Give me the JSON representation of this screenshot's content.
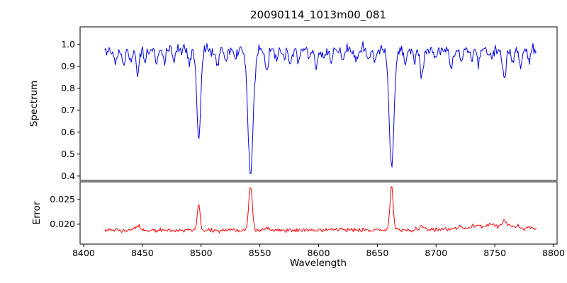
{
  "chart_data": {
    "type": "line",
    "title": "20090114_1013m00_081",
    "xlabel": "Wavelength",
    "grid": false,
    "legend": "none",
    "xlim": [
      8397,
      8803
    ],
    "x_range": [
      8418,
      8786
    ],
    "x_ticks": [
      "8400",
      "8450",
      "8500",
      "8550",
      "8600",
      "8650",
      "8700",
      "8750",
      "8800"
    ],
    "sample_step": 0.75,
    "seed": 20090114,
    "panels": [
      {
        "name": "spectrum",
        "ylabel": "Spectrum",
        "color": "#0000ee",
        "ylim": [
          0.38,
          1.08
        ],
        "y_ticks": [
          "1.0",
          "0.9",
          "0.8",
          "0.7",
          "0.6",
          "0.5",
          "0.4"
        ],
        "continuum": 0.975,
        "noise_sigma": 0.012,
        "absorption_lines": [
          {
            "center": 8498.0,
            "depth": 0.405,
            "width": 1.6
          },
          {
            "center": 8542.1,
            "depth": 0.565,
            "width": 2.2
          },
          {
            "center": 8662.1,
            "depth": 0.525,
            "width": 2.0
          },
          {
            "center": 8427,
            "depth": 0.05,
            "width": 1.1
          },
          {
            "center": 8434,
            "depth": 0.08,
            "width": 1.2
          },
          {
            "center": 8440,
            "depth": 0.05,
            "width": 1.0
          },
          {
            "center": 8446,
            "depth": 0.12,
            "width": 1.3
          },
          {
            "center": 8452,
            "depth": 0.05,
            "width": 1.0
          },
          {
            "center": 8462,
            "depth": 0.07,
            "width": 1.1
          },
          {
            "center": 8469,
            "depth": 0.06,
            "width": 1.0
          },
          {
            "center": 8477,
            "depth": 0.04,
            "width": 1.0
          },
          {
            "center": 8490,
            "depth": 0.06,
            "width": 1.1
          },
          {
            "center": 8514,
            "depth": 0.08,
            "width": 1.2
          },
          {
            "center": 8521,
            "depth": 0.05,
            "width": 1.0
          },
          {
            "center": 8529,
            "depth": 0.04,
            "width": 1.0
          },
          {
            "center": 8556,
            "depth": 0.1,
            "width": 1.3
          },
          {
            "center": 8564,
            "depth": 0.05,
            "width": 1.0
          },
          {
            "center": 8571,
            "depth": 0.04,
            "width": 1.0
          },
          {
            "center": 8576,
            "depth": 0.07,
            "width": 1.1
          },
          {
            "center": 8583,
            "depth": 0.05,
            "width": 1.0
          },
          {
            "center": 8592,
            "depth": 0.04,
            "width": 1.0
          },
          {
            "center": 8598,
            "depth": 0.08,
            "width": 1.2
          },
          {
            "center": 8605,
            "depth": 0.04,
            "width": 1.0
          },
          {
            "center": 8611,
            "depth": 0.06,
            "width": 1.1
          },
          {
            "center": 8621,
            "depth": 0.05,
            "width": 1.0
          },
          {
            "center": 8632,
            "depth": 0.04,
            "width": 1.0
          },
          {
            "center": 8642,
            "depth": 0.05,
            "width": 1.0
          },
          {
            "center": 8648,
            "depth": 0.06,
            "width": 1.1
          },
          {
            "center": 8674,
            "depth": 0.07,
            "width": 1.2
          },
          {
            "center": 8682,
            "depth": 0.05,
            "width": 1.0
          },
          {
            "center": 8688,
            "depth": 0.12,
            "width": 1.4
          },
          {
            "center": 8699,
            "depth": 0.05,
            "width": 1.0
          },
          {
            "center": 8713,
            "depth": 0.09,
            "width": 1.3
          },
          {
            "center": 8722,
            "depth": 0.05,
            "width": 1.0
          },
          {
            "center": 8730,
            "depth": 0.04,
            "width": 1.0
          },
          {
            "center": 8736,
            "depth": 0.06,
            "width": 1.1
          },
          {
            "center": 8747,
            "depth": 0.05,
            "width": 1.0
          },
          {
            "center": 8758,
            "depth": 0.13,
            "width": 1.4
          },
          {
            "center": 8765,
            "depth": 0.06,
            "width": 1.0
          },
          {
            "center": 8772,
            "depth": 0.09,
            "width": 1.2
          },
          {
            "center": 8779,
            "depth": 0.05,
            "width": 1.0
          }
        ]
      },
      {
        "name": "error",
        "ylabel": "Error",
        "color": "#ff0000",
        "ylim": [
          0.016,
          0.0285
        ],
        "y_ticks": [
          "0.025",
          "0.020"
        ],
        "baseline": 0.0188,
        "noise_sigma": 0.00022,
        "peaks": [
          {
            "center": 8498.0,
            "height": 0.0052,
            "width": 1.2
          },
          {
            "center": 8542.1,
            "height": 0.009,
            "width": 1.5
          },
          {
            "center": 8662.1,
            "height": 0.0088,
            "width": 1.4
          },
          {
            "center": 8446,
            "height": 0.0008,
            "width": 1.5
          },
          {
            "center": 8556,
            "height": 0.0006,
            "width": 1.5
          },
          {
            "center": 8688,
            "height": 0.0008,
            "width": 1.5
          },
          {
            "center": 8758,
            "height": 0.001,
            "width": 1.5
          },
          {
            "center": 8750,
            "height": 0.001,
            "width": 22
          }
        ]
      }
    ]
  }
}
